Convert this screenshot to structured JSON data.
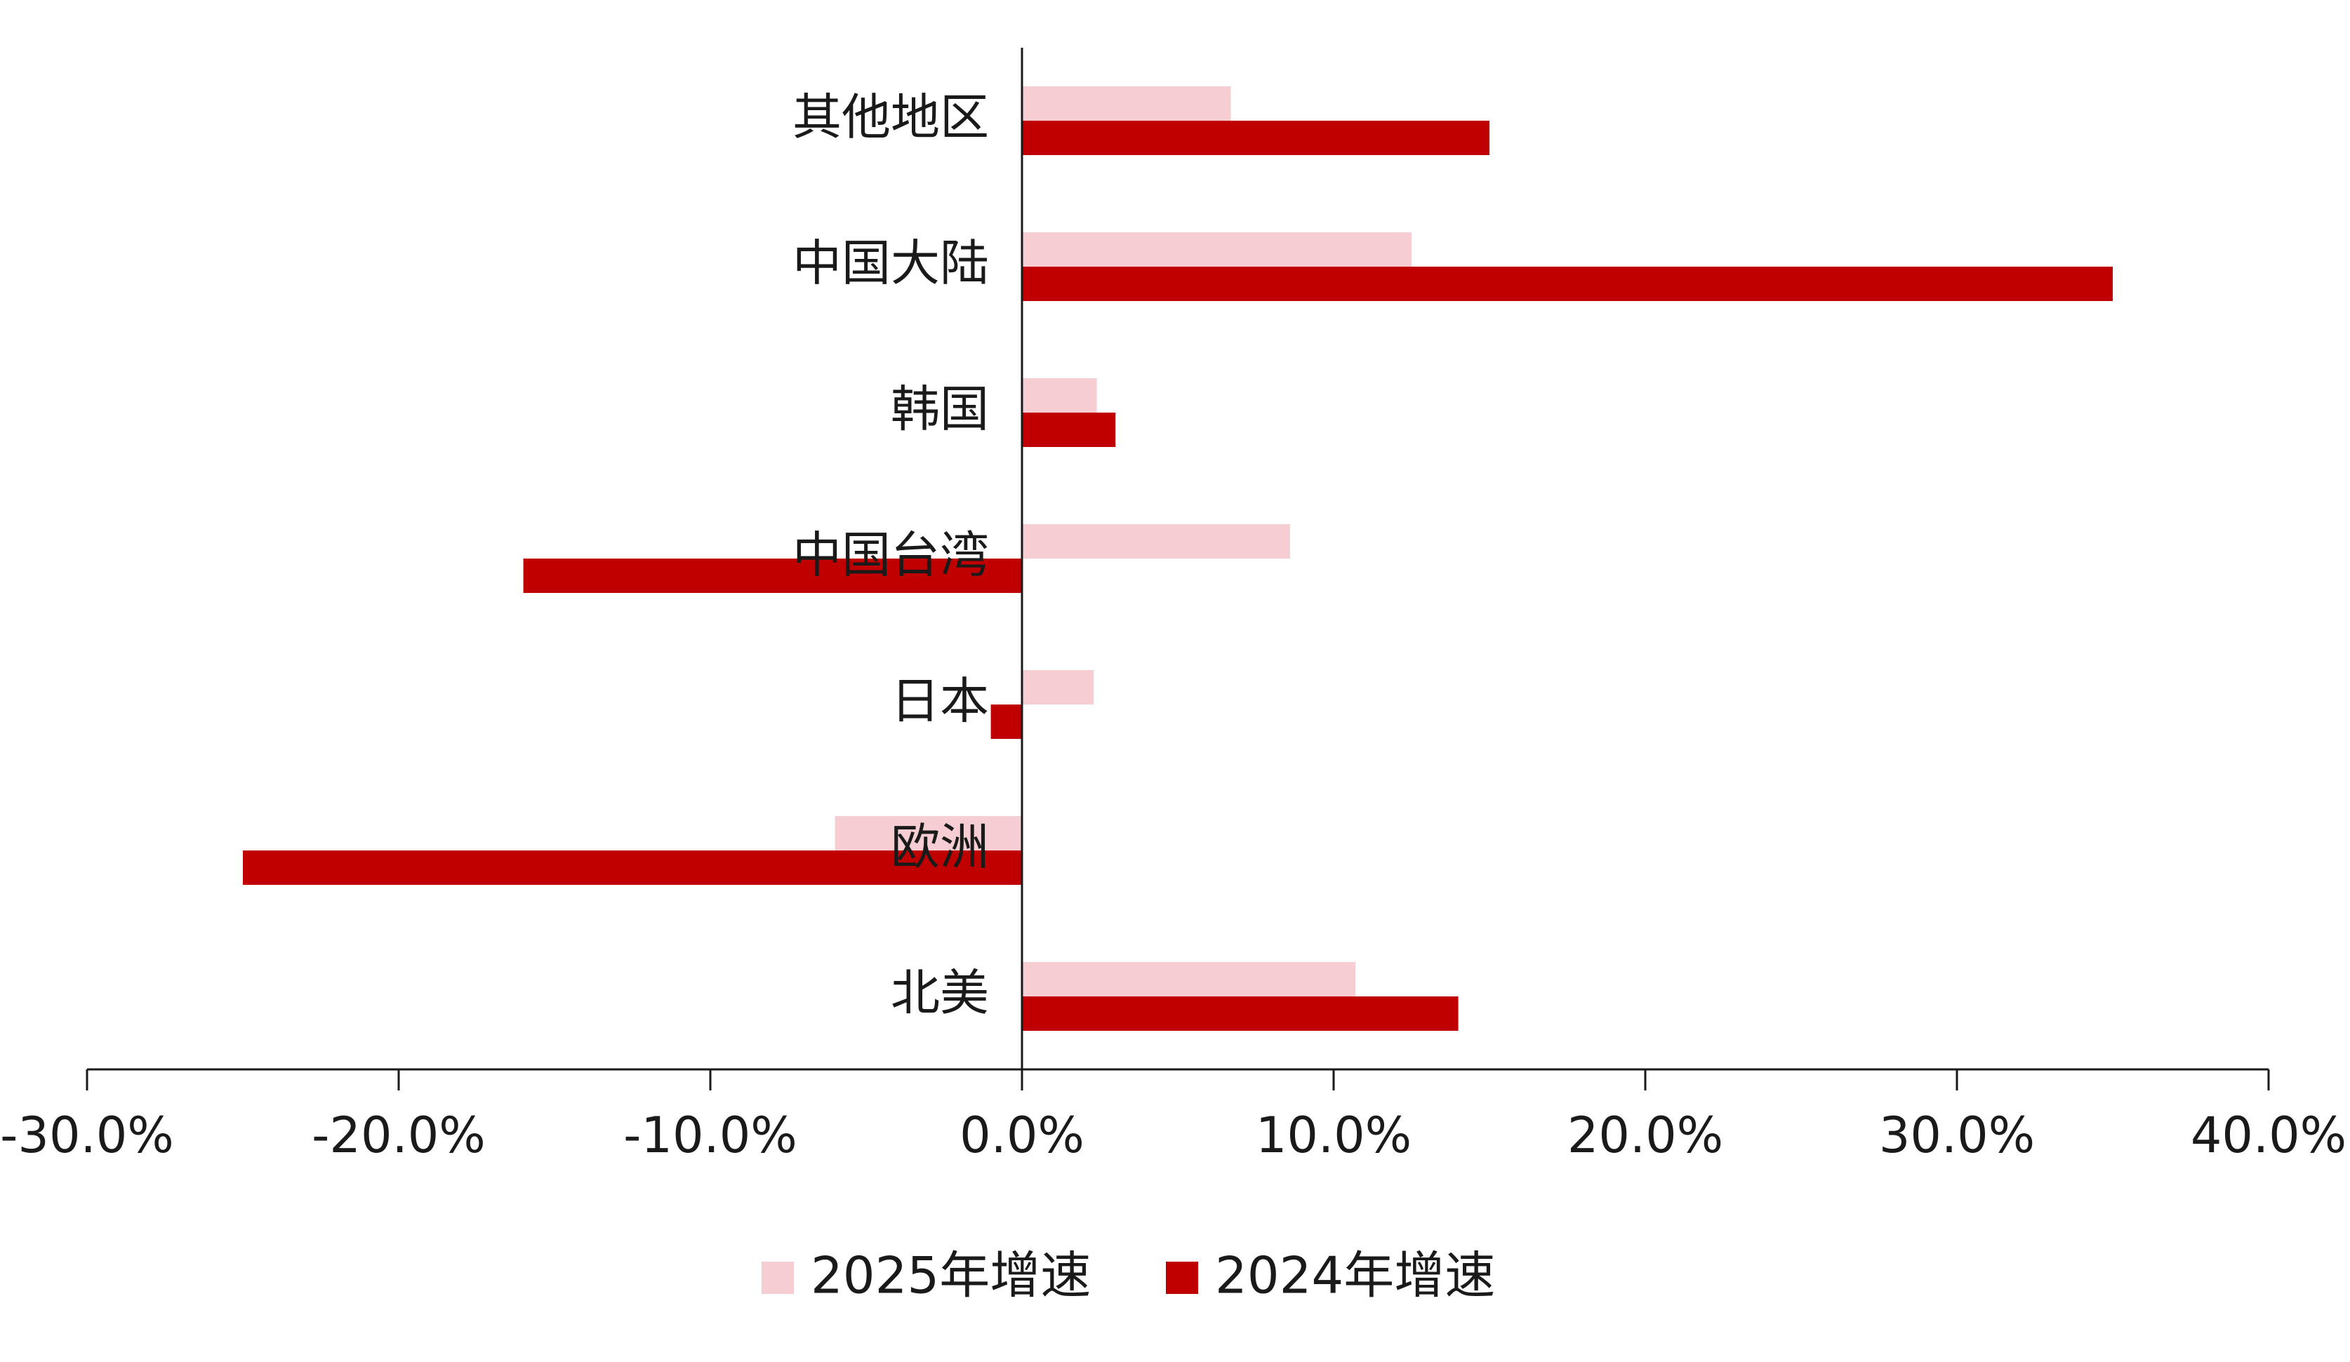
{
  "chart_data": {
    "type": "hbar",
    "categories": [
      "其他地区",
      "中国大陆",
      "韩国",
      "中国台湾",
      "日本",
      "欧洲",
      "北美"
    ],
    "series": [
      {
        "name": "2025年增速",
        "color": "#f6cdd3",
        "values": [
          6.7,
          12.5,
          2.4,
          8.6,
          2.3,
          -6.0,
          10.7
        ]
      },
      {
        "name": "2024年增速",
        "color": "#c00000",
        "values": [
          15.0,
          35.0,
          3.0,
          -16.0,
          -1.0,
          -25.0,
          14.0
        ]
      }
    ],
    "xlim": [
      -30,
      40
    ],
    "xticks": [
      {
        "value": -30,
        "label": "-30.0%"
      },
      {
        "value": -20,
        "label": "-20.0%"
      },
      {
        "value": -10,
        "label": "-10.0%"
      },
      {
        "value": 0,
        "label": "0.0%"
      },
      {
        "value": 10,
        "label": "10.0%"
      },
      {
        "value": 20,
        "label": "20.0%"
      },
      {
        "value": 30,
        "label": "30.0%"
      },
      {
        "value": 40,
        "label": "40.0%"
      }
    ],
    "legend": "bottom"
  }
}
